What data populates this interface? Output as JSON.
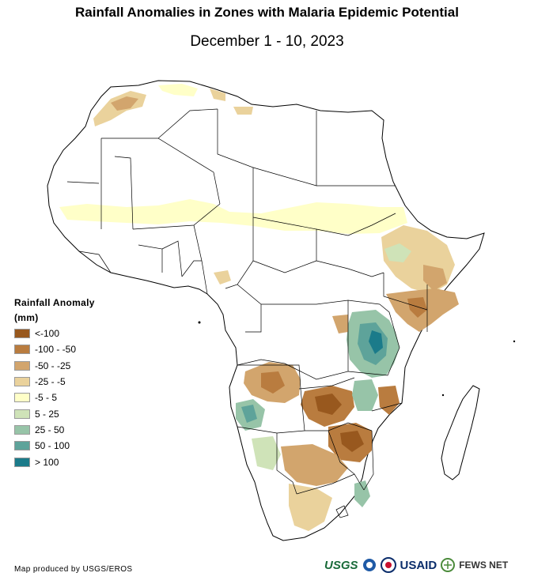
{
  "title": "Rainfall Anomalies in Zones with Malaria Epidemic Potential",
  "subtitle": "December 1 - 10, 2023",
  "legend": {
    "title_line1": "Rainfall Anomaly",
    "title_line2": "(mm)",
    "classes": [
      {
        "label": "<-100",
        "color": "#98581e"
      },
      {
        "label": "-100 - -50",
        "color": "#b97c3f"
      },
      {
        "label": "-50 - -25",
        "color": "#d2a56d"
      },
      {
        "label": "-25 - -5",
        "color": "#ead29c"
      },
      {
        "label": "-5 - 5",
        "color": "#ffffc8"
      },
      {
        "label": "5 - 25",
        "color": "#cfe3b8"
      },
      {
        "label": "25 - 50",
        "color": "#97c4a8"
      },
      {
        "label": "50 - 100",
        "color": "#5ea39a"
      },
      {
        "label": "> 100",
        "color": "#1b7b8a"
      }
    ]
  },
  "credit": "Map produced by USGS/EROS",
  "logos": {
    "usgs": "USGS",
    "usaid": "USAID",
    "fews": "FEWS NET"
  }
}
